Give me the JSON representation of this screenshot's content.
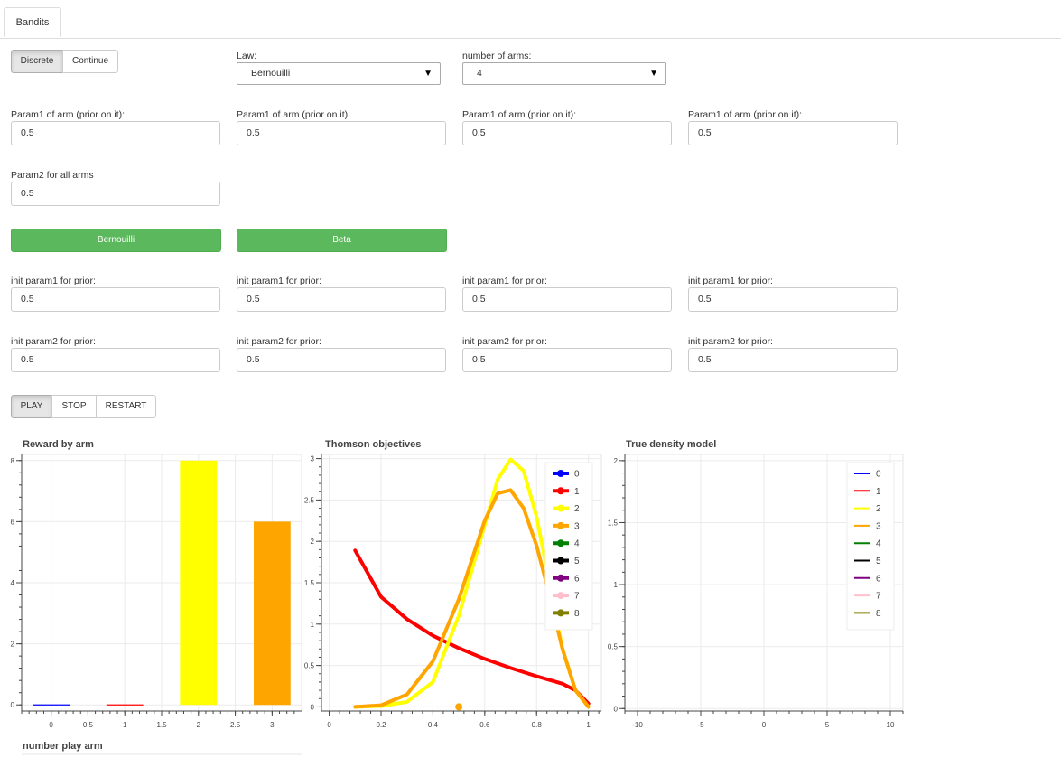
{
  "tab": {
    "label": "Bandits"
  },
  "mode": {
    "discrete": "Discrete",
    "continue": "Continue"
  },
  "law": {
    "label": "Law:",
    "value": "Bernouilli"
  },
  "arms": {
    "label": "number of arms:",
    "value": "4"
  },
  "param1": [
    {
      "label": "Param1 of arm (prior on it):",
      "value": "0.5"
    },
    {
      "label": "Param1 of arm (prior on it):",
      "value": "0.5"
    },
    {
      "label": "Param1 of arm (prior on it):",
      "value": "0.5"
    },
    {
      "label": "Param1 of arm (prior on it):",
      "value": "0.5"
    }
  ],
  "param2": {
    "label": "Param2 for all arms",
    "value": "0.5"
  },
  "law_buttons": {
    "bernouilli": "Bernouilli",
    "beta": "Beta"
  },
  "init1": [
    {
      "label": "init param1 for prior:",
      "value": "0.5"
    },
    {
      "label": "init param1 for prior:",
      "value": "0.5"
    },
    {
      "label": "init param1 for prior:",
      "value": "0.5"
    },
    {
      "label": "init param1 for prior:",
      "value": "0.5"
    }
  ],
  "init2": [
    {
      "label": "init param2 for prior:",
      "value": "0.5"
    },
    {
      "label": "init param2 for prior:",
      "value": "0.5"
    },
    {
      "label": "init param2 for prior:",
      "value": "0.5"
    },
    {
      "label": "init param2 for prior:",
      "value": "0.5"
    }
  ],
  "controls": {
    "play": "PLAY",
    "stop": "STOP",
    "restart": "RESTART"
  },
  "chart_titles": {
    "reward": "Reward by arm",
    "thomson": "Thomson objectives",
    "true_density": "True density model",
    "play_count": "number play arm"
  },
  "legend_labels": [
    "0",
    "1",
    "2",
    "3",
    "4",
    "5",
    "6",
    "7",
    "8"
  ],
  "series_colors": [
    "#0000ff",
    "#ff0000",
    "#ffff00",
    "#ffa500",
    "#008000",
    "#000000",
    "#800080",
    "#ffc0cb",
    "#808000"
  ],
  "chart_data": [
    {
      "type": "bar",
      "title": "Reward by arm",
      "categories": [
        0,
        1,
        2,
        3
      ],
      "values": [
        0,
        0,
        8,
        6
      ],
      "xlim": [
        -0.4,
        3.4
      ],
      "ylim": [
        -0.2,
        8.2
      ],
      "xticks": [
        "0",
        "0.5",
        "1",
        "1.5",
        "2",
        "2.5",
        "3"
      ],
      "yticks": [
        "0",
        "2",
        "4",
        "6",
        "8"
      ]
    },
    {
      "type": "line",
      "title": "Thomson objectives",
      "xlim": [
        -0.03,
        1.05
      ],
      "ylim": [
        -0.05,
        3.05
      ],
      "xticks": [
        "0",
        "0.2",
        "0.4",
        "0.6",
        "0.8",
        "1"
      ],
      "yticks": [
        "0",
        "0.5",
        "1",
        "1.5",
        "2",
        "2.5",
        "3"
      ],
      "series": [
        {
          "name": "1",
          "x": [
            0.1,
            0.2,
            0.3,
            0.4,
            0.5,
            0.6,
            0.7,
            0.8,
            0.9,
            0.95,
            1.0
          ],
          "y": [
            1.89,
            1.33,
            1.06,
            0.86,
            0.71,
            0.58,
            0.47,
            0.37,
            0.28,
            0.2,
            0.04
          ]
        },
        {
          "name": "2",
          "x": [
            0.1,
            0.2,
            0.3,
            0.4,
            0.5,
            0.6,
            0.65,
            0.7,
            0.75,
            0.8,
            0.85,
            0.9,
            0.95,
            1.0
          ],
          "y": [
            0.0,
            0.01,
            0.06,
            0.3,
            1.1,
            2.2,
            2.75,
            2.99,
            2.85,
            2.3,
            1.5,
            0.7,
            0.2,
            0.0
          ]
        },
        {
          "name": "3",
          "x": [
            0.1,
            0.2,
            0.3,
            0.4,
            0.5,
            0.6,
            0.65,
            0.7,
            0.75,
            0.8,
            0.85,
            0.9,
            0.95,
            1.0
          ],
          "y": [
            0.0,
            0.02,
            0.15,
            0.55,
            1.3,
            2.25,
            2.58,
            2.62,
            2.4,
            1.95,
            1.35,
            0.7,
            0.2,
            0.0
          ]
        }
      ],
      "points": [
        {
          "x": 0.5,
          "y": 0.0,
          "color": "#ffa500"
        }
      ]
    },
    {
      "type": "line",
      "title": "True density model",
      "xlim": [
        -11,
        11
      ],
      "ylim": [
        -0.02,
        2.05
      ],
      "xticks": [
        "-10",
        "-5",
        "0",
        "5",
        "10"
      ],
      "yticks": [
        "0",
        "0.5",
        "1",
        "1.5",
        "2"
      ],
      "series": []
    }
  ]
}
